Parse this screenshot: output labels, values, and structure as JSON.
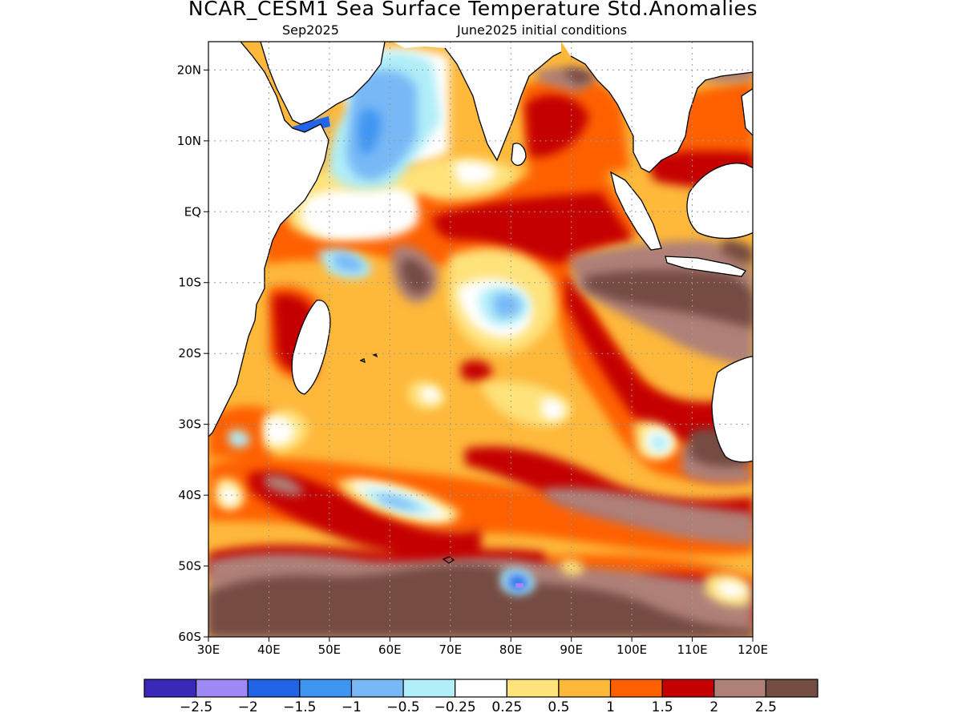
{
  "title": "NCAR_CESM1 Sea Surface Temperature Std.Anomalies",
  "subtitle_left": "Sep2025",
  "subtitle_right": "June2025 initial conditions",
  "map": {
    "lon_range": [
      30,
      120
    ],
    "lat_range": [
      -60,
      24
    ],
    "x_ticks": [
      {
        "value": 30,
        "label": "30E"
      },
      {
        "value": 40,
        "label": "40E"
      },
      {
        "value": 50,
        "label": "50E"
      },
      {
        "value": 60,
        "label": "60E"
      },
      {
        "value": 70,
        "label": "70E"
      },
      {
        "value": 80,
        "label": "80E"
      },
      {
        "value": 90,
        "label": "90E"
      },
      {
        "value": 100,
        "label": "100E"
      },
      {
        "value": 110,
        "label": "110E"
      },
      {
        "value": 120,
        "label": "120E"
      }
    ],
    "y_ticks": [
      {
        "value": 20,
        "label": "20N"
      },
      {
        "value": 10,
        "label": "10N"
      },
      {
        "value": 0,
        "label": "EQ"
      },
      {
        "value": -10,
        "label": "10S"
      },
      {
        "value": -20,
        "label": "20S"
      },
      {
        "value": -30,
        "label": "30S"
      },
      {
        "value": -40,
        "label": "40S"
      },
      {
        "value": -50,
        "label": "50S"
      },
      {
        "value": -60,
        "label": "60S"
      }
    ],
    "gridlines": "dotted"
  },
  "colorbar": {
    "colors": [
      "#3a28b8",
      "#9e88f6",
      "#2164e8",
      "#3f96f2",
      "#78b8f6",
      "#b0eef8",
      "#ffffff",
      "#fee27a",
      "#feb83a",
      "#fe6000",
      "#c40000",
      "#ae8078",
      "#744c42"
    ],
    "labels": [
      "-2.5",
      "-2",
      "-1.5",
      "-1",
      "-0.5",
      "-0.25",
      "0.25",
      "0.5",
      "1",
      "1.5",
      "2",
      "2.5"
    ]
  },
  "land_color": "#ffffff",
  "coast_color": "#000000"
}
